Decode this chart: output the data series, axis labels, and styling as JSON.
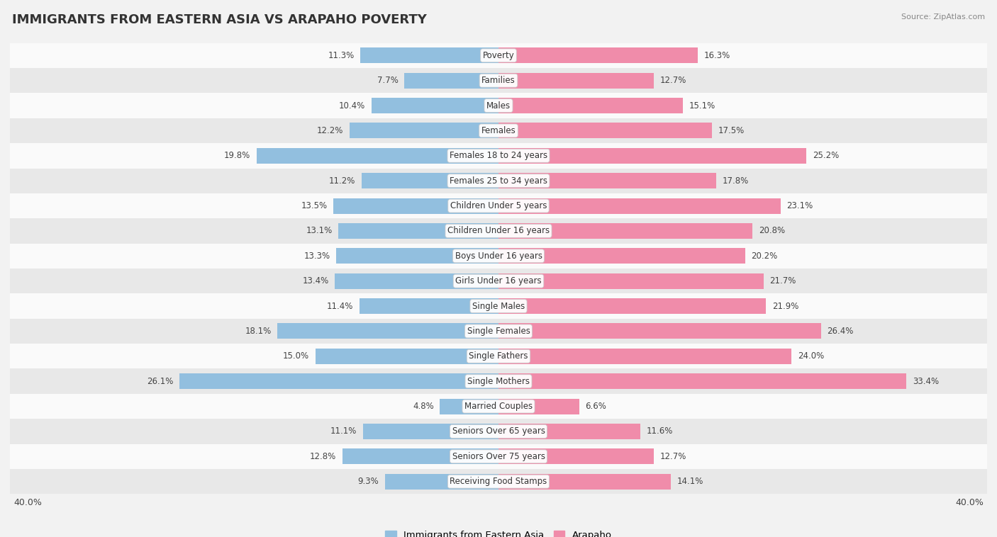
{
  "title": "IMMIGRANTS FROM EASTERN ASIA VS ARAPAHO POVERTY",
  "source": "Source: ZipAtlas.com",
  "categories": [
    "Poverty",
    "Families",
    "Males",
    "Females",
    "Females 18 to 24 years",
    "Females 25 to 34 years",
    "Children Under 5 years",
    "Children Under 16 years",
    "Boys Under 16 years",
    "Girls Under 16 years",
    "Single Males",
    "Single Females",
    "Single Fathers",
    "Single Mothers",
    "Married Couples",
    "Seniors Over 65 years",
    "Seniors Over 75 years",
    "Receiving Food Stamps"
  ],
  "left_values": [
    11.3,
    7.7,
    10.4,
    12.2,
    19.8,
    11.2,
    13.5,
    13.1,
    13.3,
    13.4,
    11.4,
    18.1,
    15.0,
    26.1,
    4.8,
    11.1,
    12.8,
    9.3
  ],
  "right_values": [
    16.3,
    12.7,
    15.1,
    17.5,
    25.2,
    17.8,
    23.1,
    20.8,
    20.2,
    21.7,
    21.9,
    26.4,
    24.0,
    33.4,
    6.6,
    11.6,
    12.7,
    14.1
  ],
  "left_color": "#92bfdf",
  "right_color": "#f08caa",
  "left_label": "Immigrants from Eastern Asia",
  "right_label": "Arapaho",
  "xlim": 40.0,
  "bar_height": 0.62,
  "bg_color": "#f2f2f2",
  "row_light": "#fafafa",
  "row_dark": "#e8e8e8",
  "title_fontsize": 13,
  "label_fontsize": 9,
  "value_fontsize": 8.5,
  "cat_fontsize": 8.5
}
